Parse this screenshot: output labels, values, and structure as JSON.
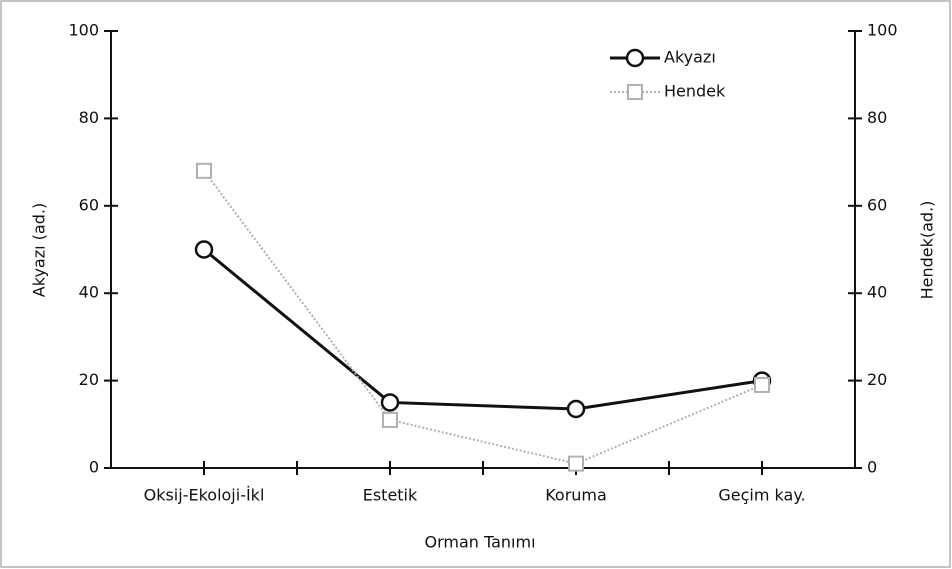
{
  "chart_data": {
    "type": "line",
    "categories": [
      "Oksij-Ekoloji-İkl",
      "Estetik",
      "Koruma",
      "Geçim kay."
    ],
    "series": [
      {
        "name": "Akyazı",
        "color": "#111111",
        "values": [
          50,
          15,
          13.5,
          20
        ]
      },
      {
        "name": "Hendek",
        "color": "#b0b0b0",
        "values": [
          68,
          11,
          1,
          19
        ],
        "axis": "y2"
      }
    ],
    "ylim": [
      0,
      100
    ],
    "yticks": [
      0,
      20,
      40,
      60,
      80,
      100
    ],
    "y2lim": [
      0,
      100
    ],
    "y2ticks": [
      0,
      20,
      40,
      60,
      80,
      100
    ],
    "ylabel": "Akyazı (ad.)",
    "y2label": "Hendek(ad.)",
    "xlabel": "Orman Tanımı",
    "legend": "upper right"
  }
}
